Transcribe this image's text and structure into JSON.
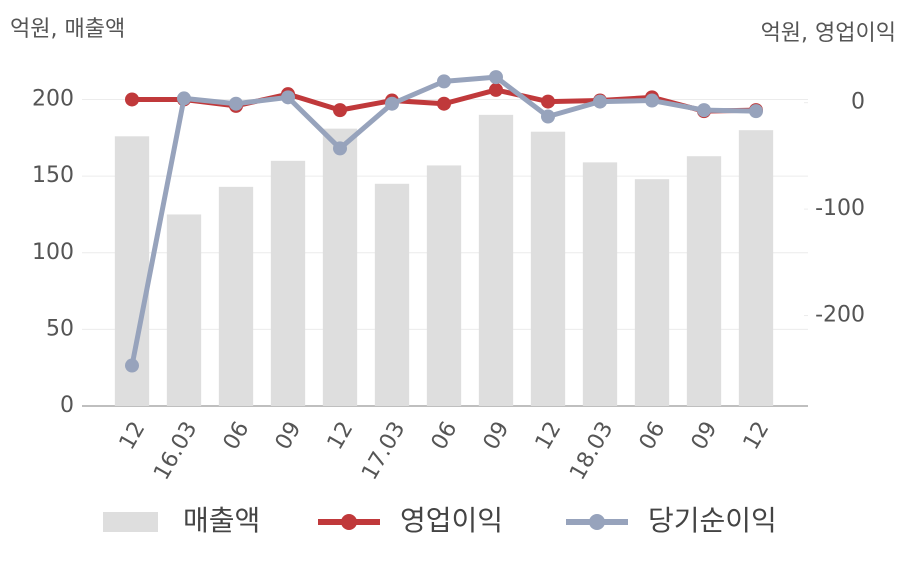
{
  "chart_data": {
    "type": "bar",
    "y_axis_label": "억원, 매출액",
    "y2_axis_label": "억원, 영업이익",
    "categories": [
      "12",
      "16.03",
      "06",
      "09",
      "12",
      "17.03",
      "06",
      "09",
      "12",
      "18.03",
      "06",
      "09",
      "12"
    ],
    "series": [
      {
        "name": "매출액",
        "type": "bar",
        "color": "#dedede",
        "values": [
          176,
          125,
          143,
          160,
          181,
          145,
          157,
          190,
          179,
          159,
          148,
          163,
          180
        ]
      },
      {
        "name": "영업이익",
        "type": "line",
        "axis": "y2",
        "color": "#c0393b",
        "values": [
          3,
          3,
          -3,
          8,
          -7,
          2,
          -1,
          12,
          1,
          2,
          5,
          -8,
          -7
        ]
      },
      {
        "name": "당기순이익",
        "type": "line",
        "axis": "y2",
        "color": "#97a3bc",
        "values": [
          -247,
          4,
          -1,
          5,
          -43,
          -1,
          20,
          24,
          -13,
          1,
          2,
          -7,
          -8
        ]
      }
    ],
    "ylim": [
      0,
      216
    ],
    "yticks": [
      0,
      50,
      100,
      150,
      200
    ],
    "y2lim": [
      -285,
      26
    ],
    "y2ticks": [
      0,
      -100,
      -200
    ],
    "grid": true
  }
}
